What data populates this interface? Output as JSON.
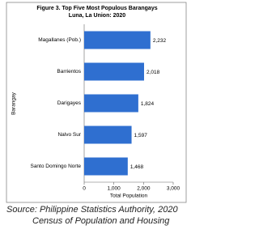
{
  "chart_data": {
    "type": "hbar",
    "title": "Figure 3. Top Five Most Populous Barangays",
    "subtitle": "Luna, La Union: 2020",
    "y_label": "Barangay",
    "x_label": "Total Population",
    "categories": [
      "Magallanes (Pob.)",
      "Barrientos",
      "Darigayes",
      "Nalvo Sur",
      "Santo Domingo Norte"
    ],
    "values": [
      2232,
      2018,
      1824,
      1597,
      1468
    ],
    "value_labels": [
      "2,232",
      "2,018",
      "1,824",
      "1,597",
      "1,468"
    ],
    "color": "#2f6fd0",
    "xlim": [
      0,
      3000
    ],
    "xticks": [
      0,
      {
        "value": 1000,
        "label": "1,000"
      },
      {
        "value": 2000,
        "label": "2,000"
      },
      {
        "value": 3000,
        "label": "3,000"
      }
    ],
    "source_lines": [
      "Source: Philippine Statistics Authority, 2020",
      "Census of Population and Housing"
    ]
  }
}
